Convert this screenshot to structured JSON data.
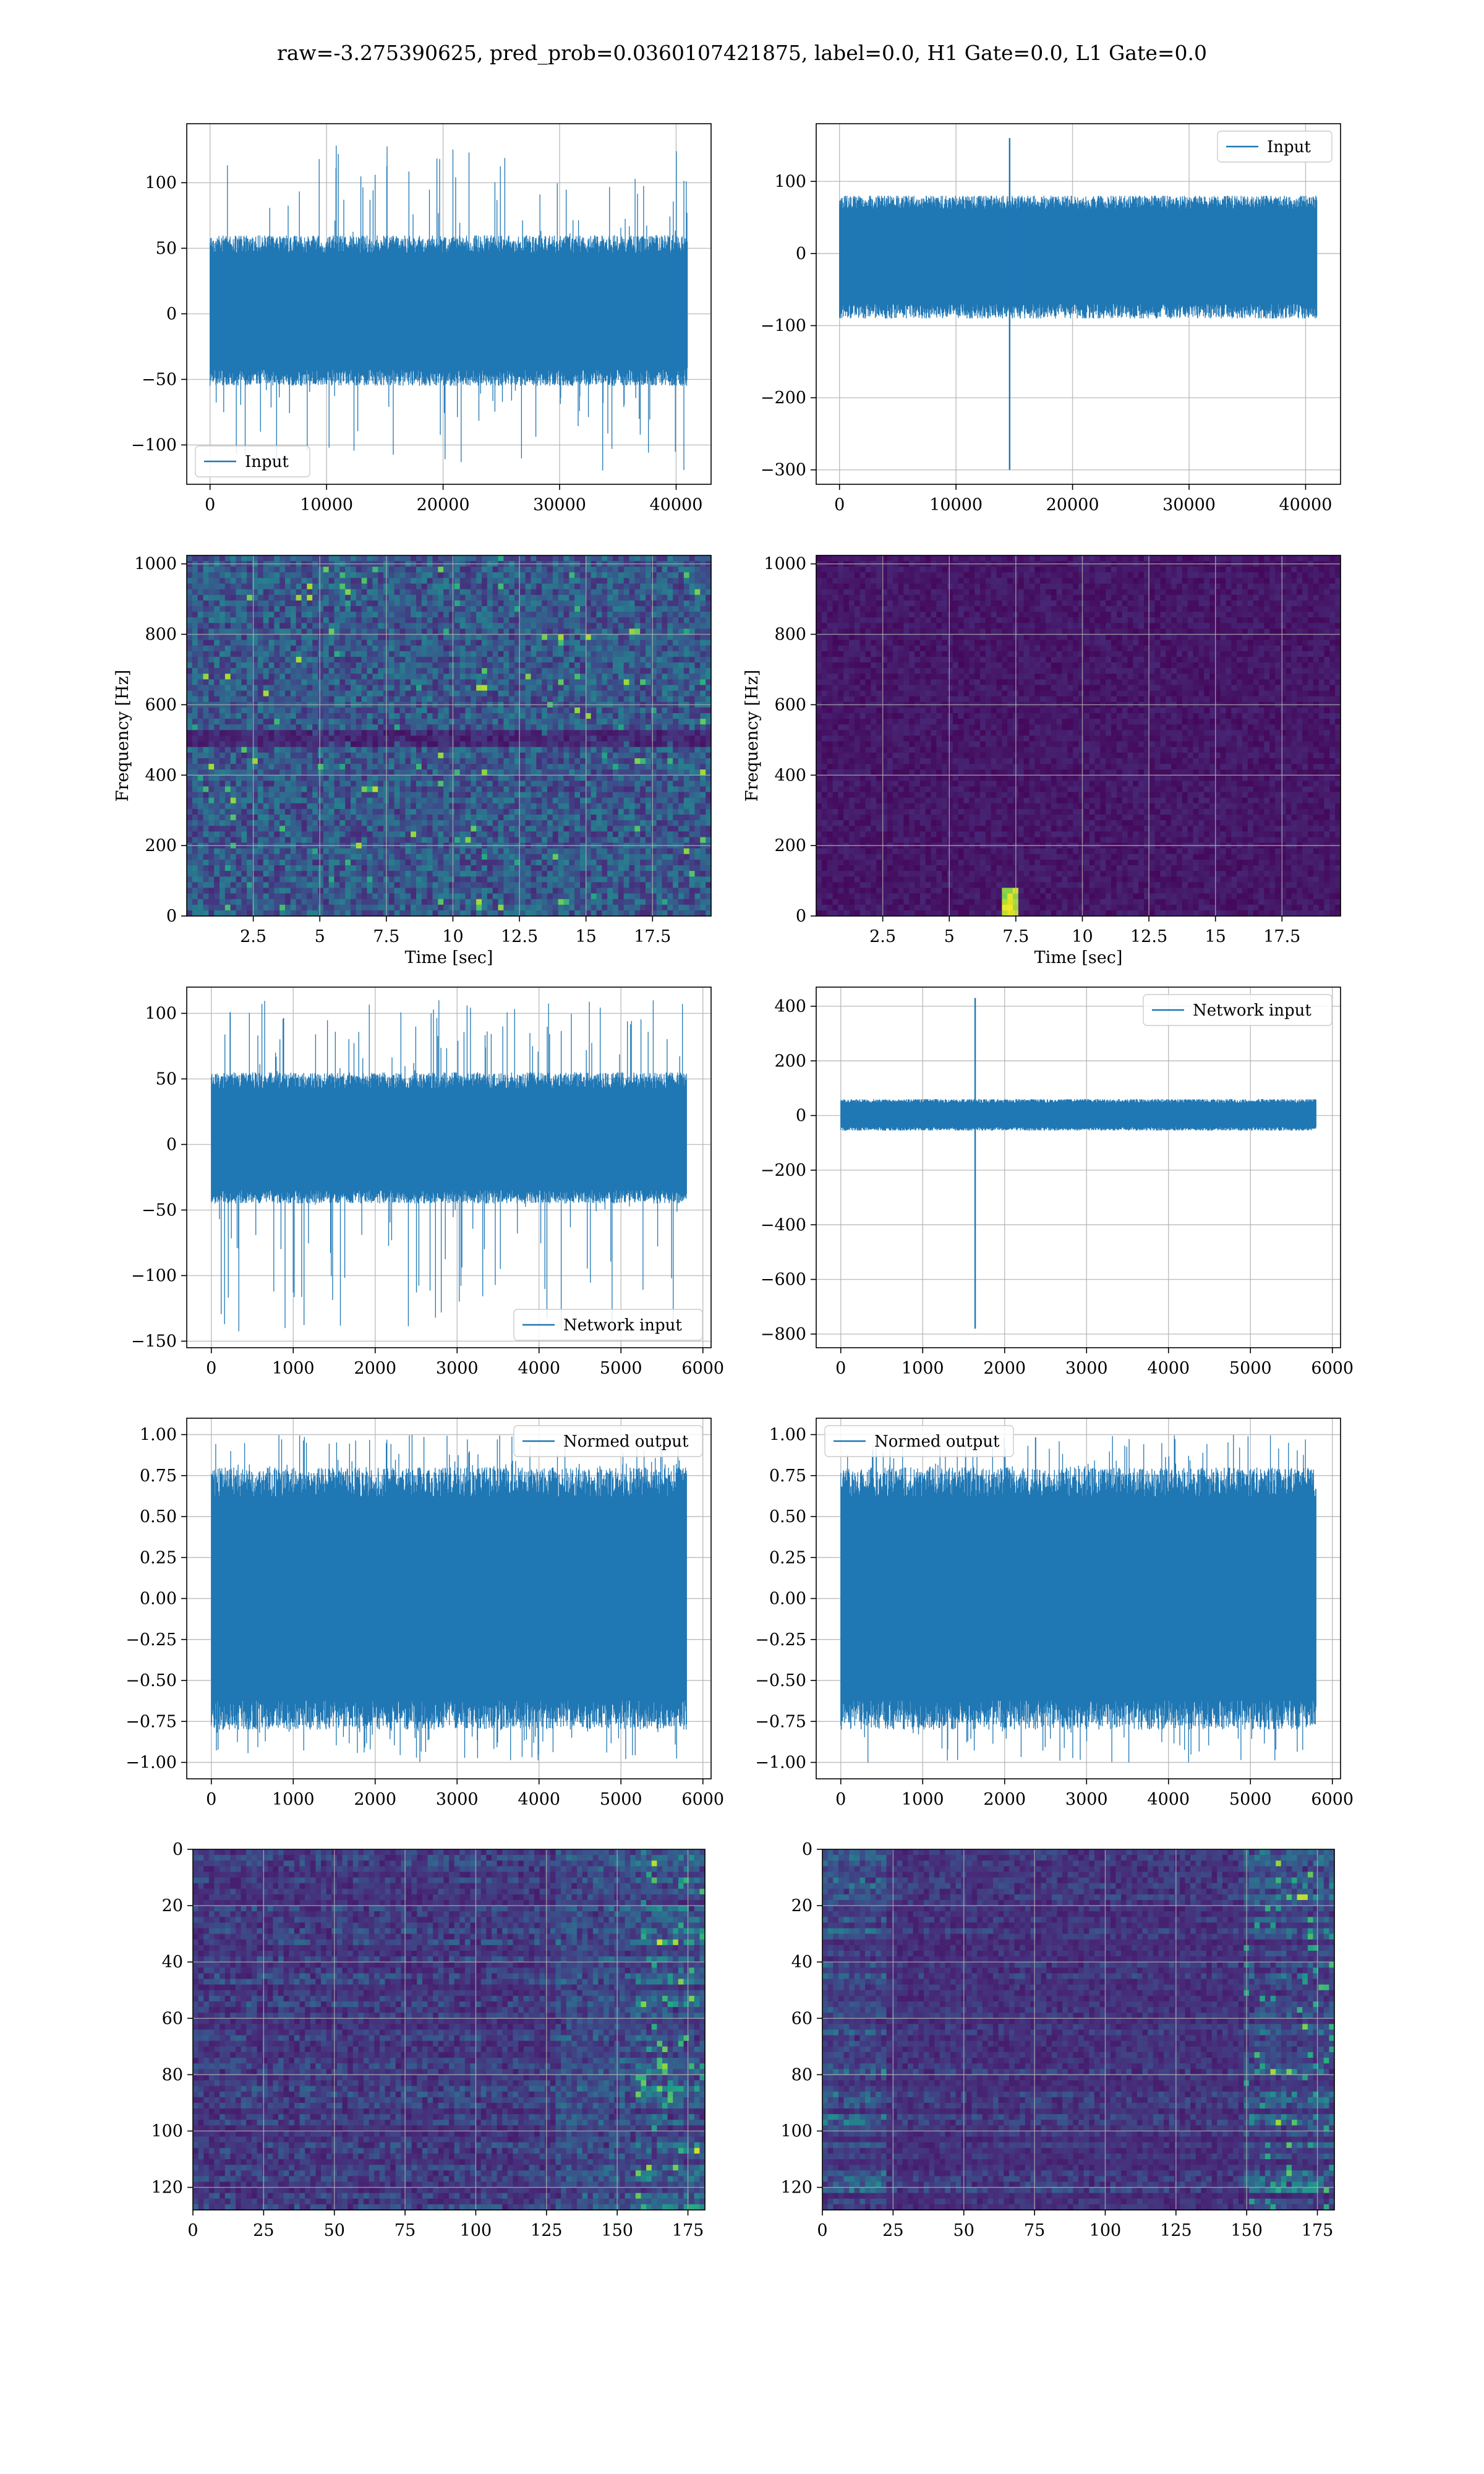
{
  "figure_title": "raw=-3.275390625, pred_prob=0.0360107421875, label=0.0, H1 Gate=0.0, L1 Gate=0.0",
  "colors": {
    "line": "#1f77b4",
    "grid": "#b0b0b0",
    "viridis_dark": "#440154",
    "viridis_mid": "#21918c",
    "viridis_bright": "#fde725"
  },
  "chart_data": [
    {
      "id": "h1-input",
      "type": "line",
      "series": [
        {
          "name": "Input",
          "x_range": [
            0,
            40960
          ],
          "amplitude_typical": [
            -55,
            60
          ],
          "extreme_min": -120,
          "extreme_max": 130
        }
      ],
      "xlim": [
        -2000,
        43000
      ],
      "ylim": [
        -130,
        145
      ],
      "xticks": [
        0,
        10000,
        20000,
        30000,
        40000
      ],
      "yticks": [
        -100,
        -50,
        0,
        50,
        100
      ],
      "xlabel": "",
      "ylabel": "",
      "legend": "lower-left",
      "grid": true
    },
    {
      "id": "l1-input",
      "type": "line",
      "series": [
        {
          "name": "Input",
          "x_range": [
            0,
            40960
          ],
          "amplitude_typical": [
            -90,
            80
          ],
          "spike_x": 14600,
          "spike_min": -300,
          "spike_max": 160
        }
      ],
      "xlim": [
        -2000,
        43000
      ],
      "ylim": [
        -320,
        180
      ],
      "xticks": [
        0,
        10000,
        20000,
        30000,
        40000
      ],
      "yticks": [
        -300,
        -200,
        -100,
        0,
        100
      ],
      "xlabel": "",
      "ylabel": "",
      "legend": "upper-right",
      "grid": true
    },
    {
      "id": "h1-spectrogram",
      "type": "heatmap",
      "xlim": [
        0,
        19.7
      ],
      "ylim": [
        0,
        1024
      ],
      "xticks": [
        2.5,
        5.0,
        7.5,
        10.0,
        12.5,
        15.0,
        17.5
      ],
      "yticks": [
        0,
        200,
        400,
        600,
        800,
        1000
      ],
      "xlabel": "Time [sec]",
      "ylabel": "Frequency [Hz]",
      "colormap": "viridis",
      "intensity": "high-noise",
      "grid": true
    },
    {
      "id": "l1-spectrogram",
      "type": "heatmap",
      "xlim": [
        0,
        19.7
      ],
      "ylim": [
        0,
        1024
      ],
      "xticks": [
        2.5,
        5.0,
        7.5,
        10.0,
        12.5,
        15.0,
        17.5
      ],
      "yticks": [
        0,
        200,
        400,
        600,
        800,
        1000
      ],
      "xlabel": "Time [sec]",
      "ylabel": "Frequency [Hz]",
      "colormap": "viridis",
      "intensity": "dark-with-glitch",
      "glitch_time": 7.2,
      "glitch_freq": [
        0,
        80
      ],
      "grid": true
    },
    {
      "id": "h1-network-input",
      "type": "line",
      "series": [
        {
          "name": "Network input",
          "x_range": [
            0,
            5800
          ],
          "amplitude_typical": [
            -45,
            55
          ],
          "extreme_min": -145,
          "extreme_max": 110
        }
      ],
      "xlim": [
        -300,
        6100
      ],
      "ylim": [
        -155,
        120
      ],
      "xticks": [
        0,
        1000,
        2000,
        3000,
        4000,
        5000,
        6000
      ],
      "yticks": [
        -150,
        -100,
        -50,
        0,
        50,
        100
      ],
      "xlabel": "",
      "ylabel": "",
      "legend": "lower-right",
      "grid": true
    },
    {
      "id": "l1-network-input",
      "type": "line",
      "series": [
        {
          "name": "Network input",
          "x_range": [
            0,
            5800
          ],
          "amplitude_typical": [
            -55,
            60
          ],
          "spike_x": 1640,
          "spike_min": -780,
          "spike_max": 430
        }
      ],
      "xlim": [
        -300,
        6100
      ],
      "ylim": [
        -850,
        470
      ],
      "xticks": [
        0,
        1000,
        2000,
        3000,
        4000,
        5000,
        6000
      ],
      "yticks": [
        -800,
        -600,
        -400,
        -200,
        0,
        200,
        400
      ],
      "xlabel": "",
      "ylabel": "",
      "legend": "upper-right",
      "grid": true
    },
    {
      "id": "h1-normed-output",
      "type": "line",
      "series": [
        {
          "name": "Normed output",
          "x_range": [
            0,
            5800
          ],
          "amplitude_typical": [
            -0.8,
            0.8
          ],
          "extreme_min": -1.0,
          "extreme_max": 1.0
        }
      ],
      "xlim": [
        -300,
        6100
      ],
      "ylim": [
        -1.1,
        1.1
      ],
      "xticks": [
        0,
        1000,
        2000,
        3000,
        4000,
        5000,
        6000
      ],
      "yticks": [
        -1.0,
        -0.75,
        -0.5,
        -0.25,
        0.0,
        0.25,
        0.5,
        0.75,
        1.0
      ],
      "ytick_labels": [
        "−1.00",
        "−0.75",
        "−0.50",
        "−0.25",
        "0.00",
        "0.25",
        "0.50",
        "0.75",
        "1.00"
      ],
      "xlabel": "",
      "ylabel": "",
      "legend": "upper-right",
      "grid": true
    },
    {
      "id": "l1-normed-output",
      "type": "line",
      "series": [
        {
          "name": "Normed output",
          "x_range": [
            0,
            5800
          ],
          "amplitude_typical": [
            -0.8,
            0.8
          ],
          "extreme_min": -1.0,
          "extreme_max": 1.0
        }
      ],
      "xlim": [
        -300,
        6100
      ],
      "ylim": [
        -1.1,
        1.1
      ],
      "xticks": [
        0,
        1000,
        2000,
        3000,
        4000,
        5000,
        6000
      ],
      "yticks": [
        -1.0,
        -0.75,
        -0.5,
        -0.25,
        0.0,
        0.25,
        0.5,
        0.75,
        1.0
      ],
      "ytick_labels": [
        "−1.00",
        "−0.75",
        "−0.50",
        "−0.25",
        "0.00",
        "0.25",
        "0.50",
        "0.75",
        "1.00"
      ],
      "xlabel": "",
      "ylabel": "",
      "legend": "upper-left",
      "grid": true
    },
    {
      "id": "h1-feature-map",
      "type": "heatmap",
      "xlim": [
        0,
        181
      ],
      "ylim": [
        128,
        0
      ],
      "xticks": [
        0,
        25,
        50,
        75,
        100,
        125,
        150,
        175
      ],
      "yticks": [
        0,
        20,
        40,
        60,
        80,
        100,
        120
      ],
      "xlabel": "",
      "ylabel": "",
      "colormap": "viridis",
      "intensity": "rows-bright-right",
      "grid": true
    },
    {
      "id": "l1-feature-map",
      "type": "heatmap",
      "xlim": [
        0,
        181
      ],
      "ylim": [
        128,
        0
      ],
      "xticks": [
        0,
        25,
        50,
        75,
        100,
        125,
        150,
        175
      ],
      "yticks": [
        0,
        20,
        40,
        60,
        80,
        100,
        120
      ],
      "xlabel": "",
      "ylabel": "",
      "colormap": "viridis",
      "intensity": "rows-bright-edges",
      "grid": true
    }
  ]
}
